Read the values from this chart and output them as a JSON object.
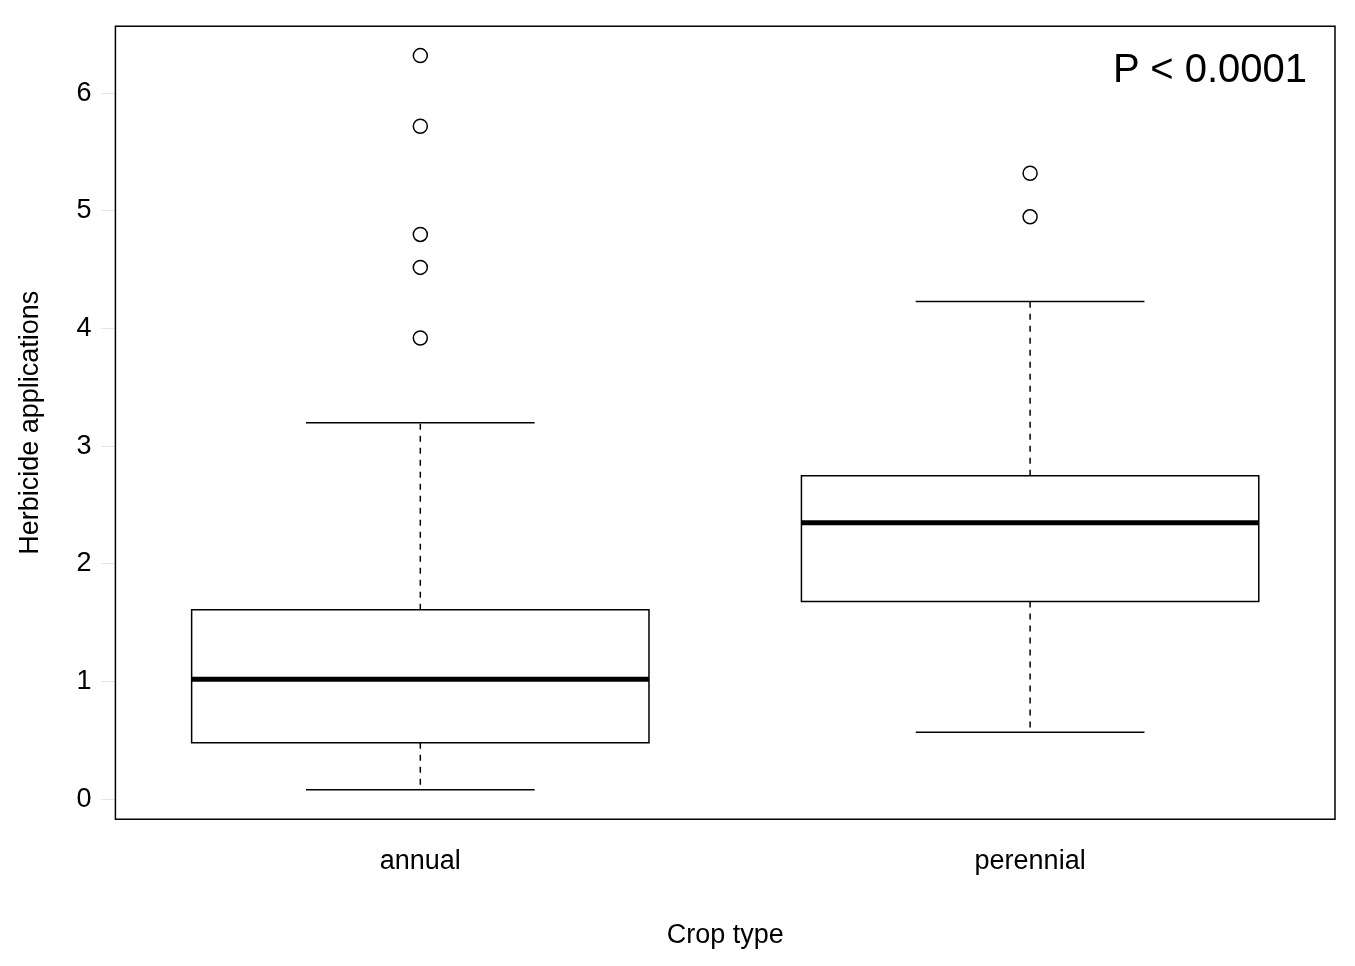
{
  "chart_data": {
    "type": "box",
    "xlabel": "Crop type",
    "ylabel": "Herbicide applications",
    "categories": [
      "annual",
      "perennial"
    ],
    "boxes": [
      {
        "low": 0.08,
        "q1": 0.48,
        "median": 1.02,
        "q3": 1.61,
        "high": 3.2,
        "outliers": [
          6.32,
          5.72,
          4.8,
          4.52,
          3.92
        ]
      },
      {
        "low": 0.57,
        "q1": 1.68,
        "median": 2.35,
        "q3": 2.75,
        "high": 4.23,
        "outliers": [
          5.32,
          4.95
        ]
      }
    ],
    "ylim": [
      -0.17,
      6.57
    ],
    "yticks": [
      0,
      1,
      2,
      3,
      4,
      5,
      6
    ],
    "grid": false,
    "legend": false,
    "annotations": [
      "P < 0.0001"
    ]
  }
}
